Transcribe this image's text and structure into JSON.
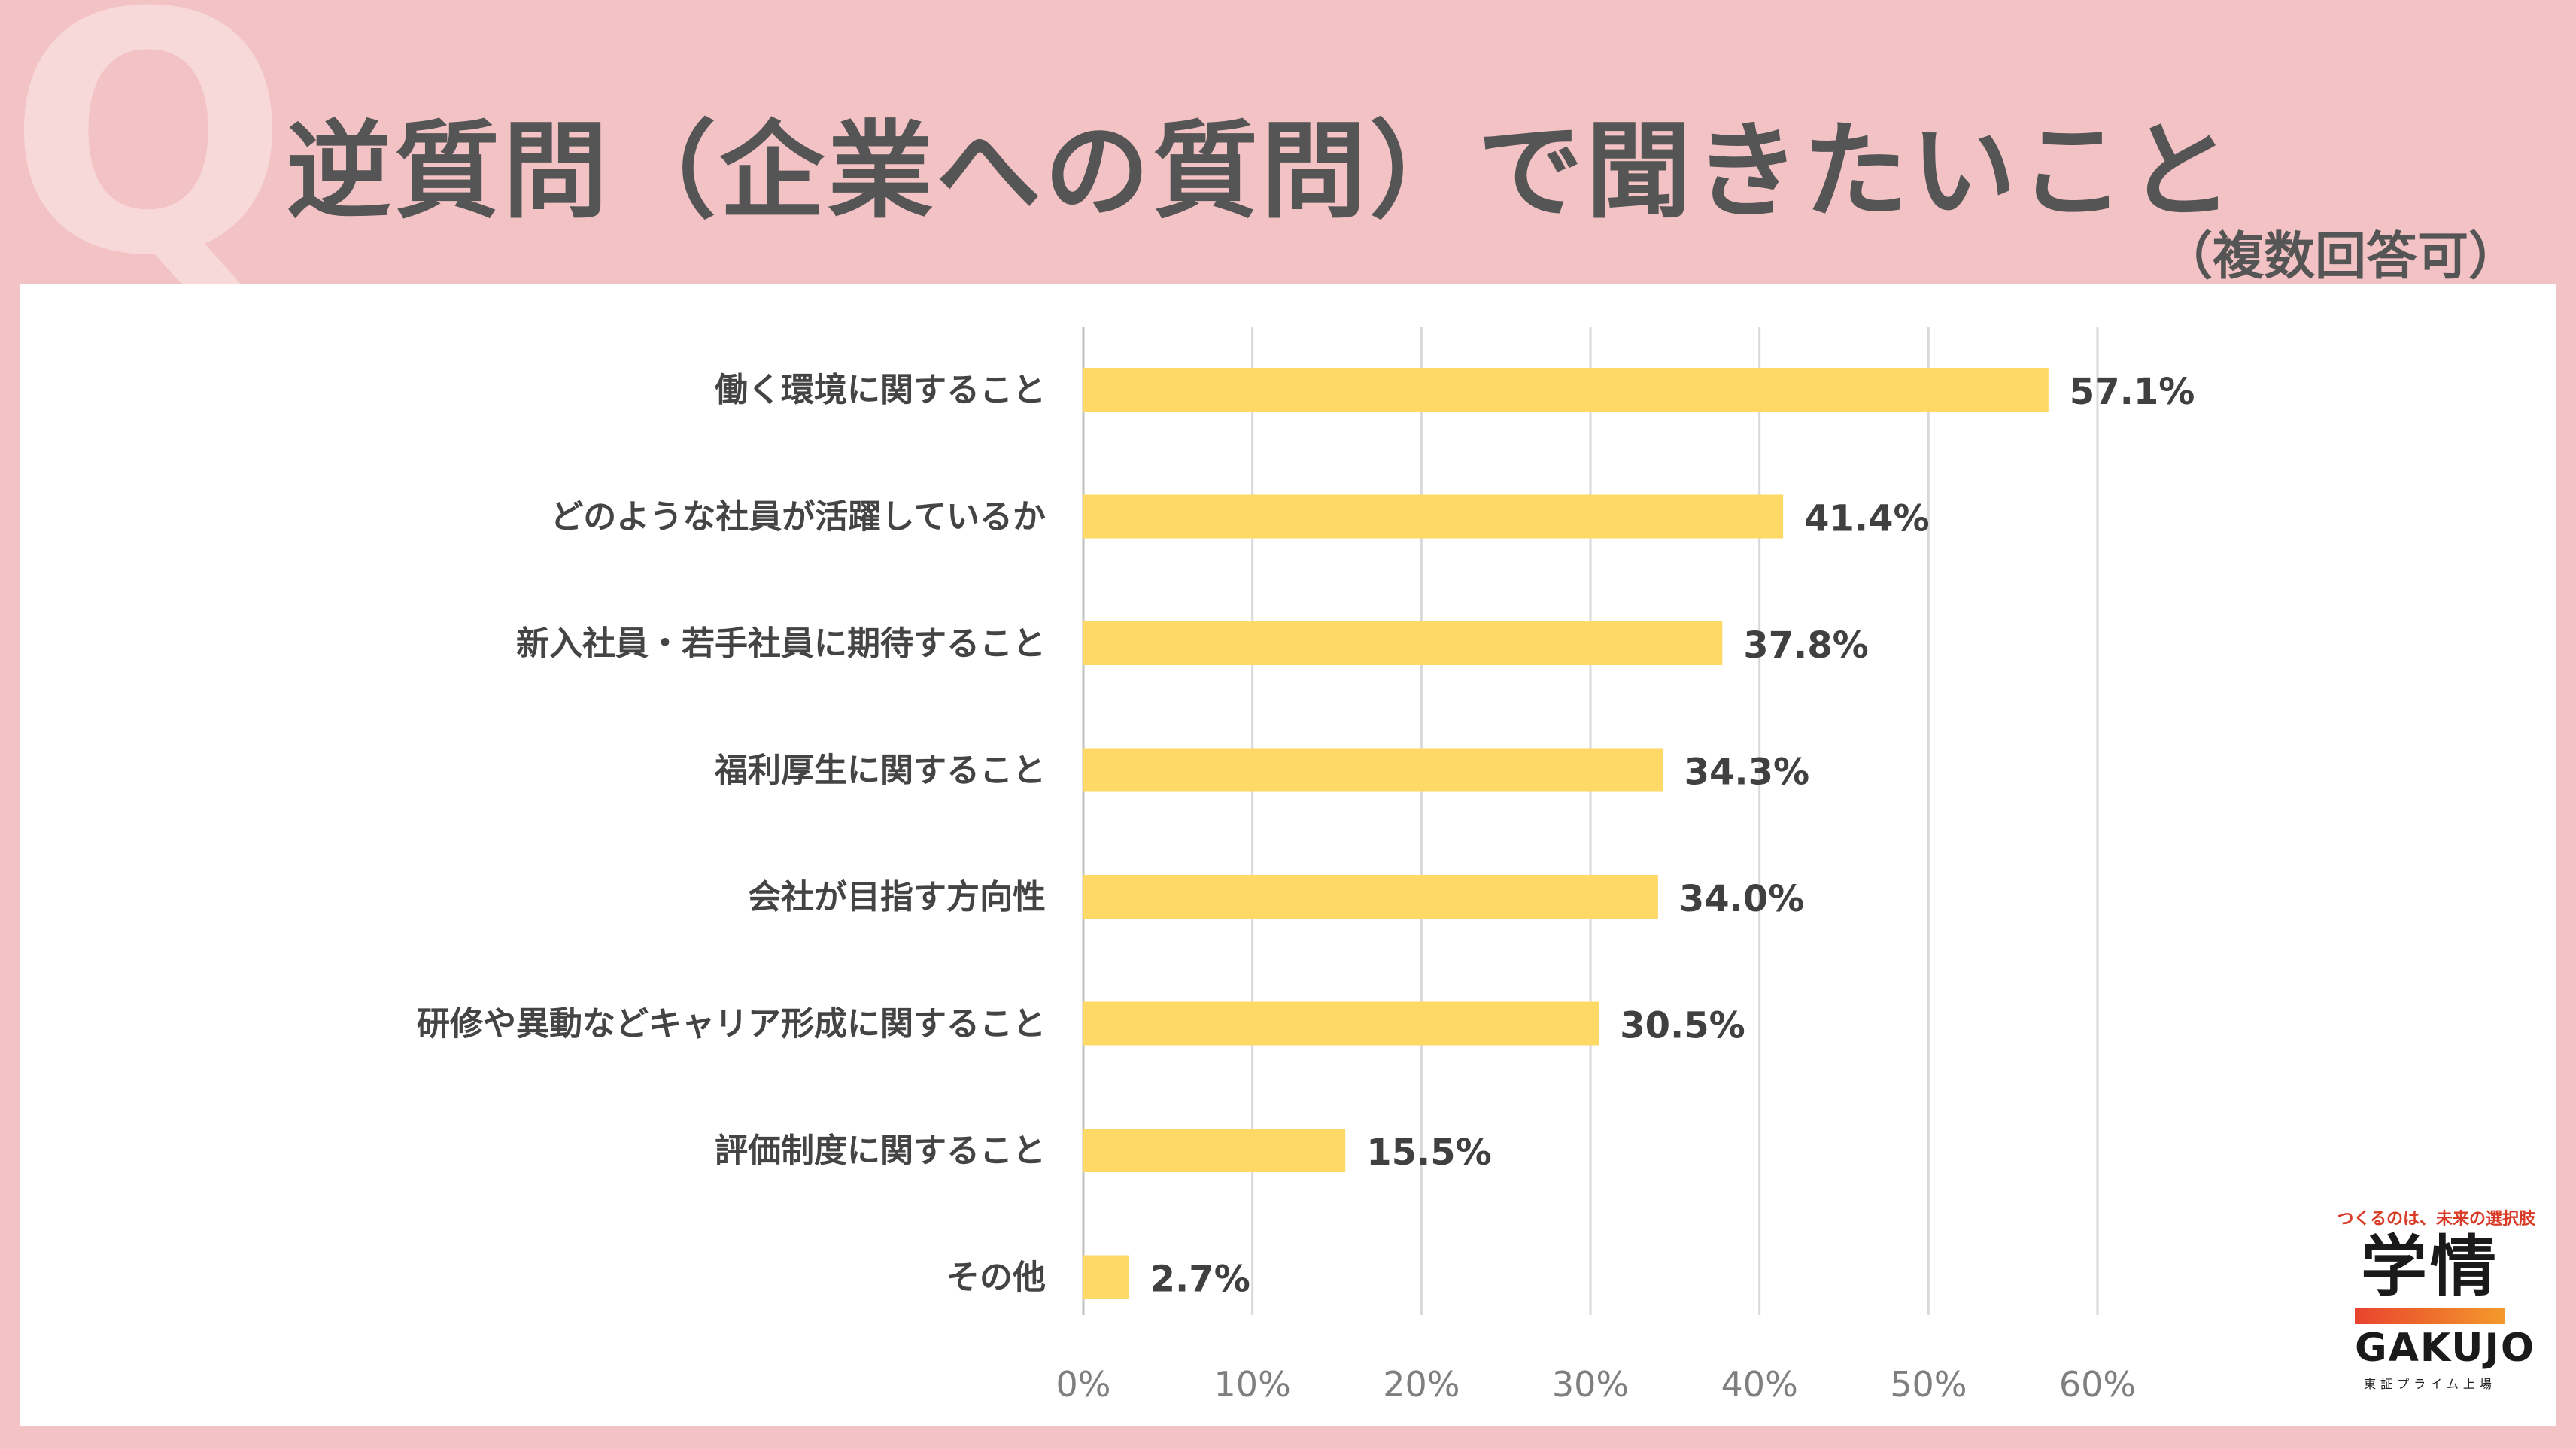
{
  "page": {
    "q_letter": "Q",
    "title": "逆質問（企業への質問）で聞きたいこと",
    "subtitle": "（複数回答可）",
    "colors": {
      "background": "#f2c2c4",
      "bar": "#ffd966",
      "panel": "#ffffff"
    }
  },
  "logo": {
    "tagline": "つくるのは、未来の選択肢",
    "kanji": "学情",
    "name": "GAKUJO",
    "sub": "東証プライム上場"
  },
  "chart_data": {
    "type": "bar",
    "orientation": "horizontal",
    "categories": [
      "働く環境に関すること",
      "どのような社員が活躍しているか",
      "新入社員・若手社員に期待すること",
      "福利厚生に関すること",
      "会社が目指す方向性",
      "研修や異動などキャリア形成に関すること",
      "評価制度に関すること",
      "その他"
    ],
    "values": [
      57.1,
      41.4,
      37.8,
      34.3,
      34.0,
      30.5,
      15.5,
      2.7
    ],
    "value_labels": [
      "57.1%",
      "41.4%",
      "37.8%",
      "34.3%",
      "34.0%",
      "30.5%",
      "15.5%",
      "2.7%"
    ],
    "xlim": [
      0,
      60
    ],
    "ticks": [
      0,
      10,
      20,
      30,
      40,
      50,
      60
    ],
    "tick_labels": [
      "0%",
      "10%",
      "20%",
      "30%",
      "40%",
      "50%",
      "60%"
    ],
    "grid": true,
    "legend": "none"
  }
}
